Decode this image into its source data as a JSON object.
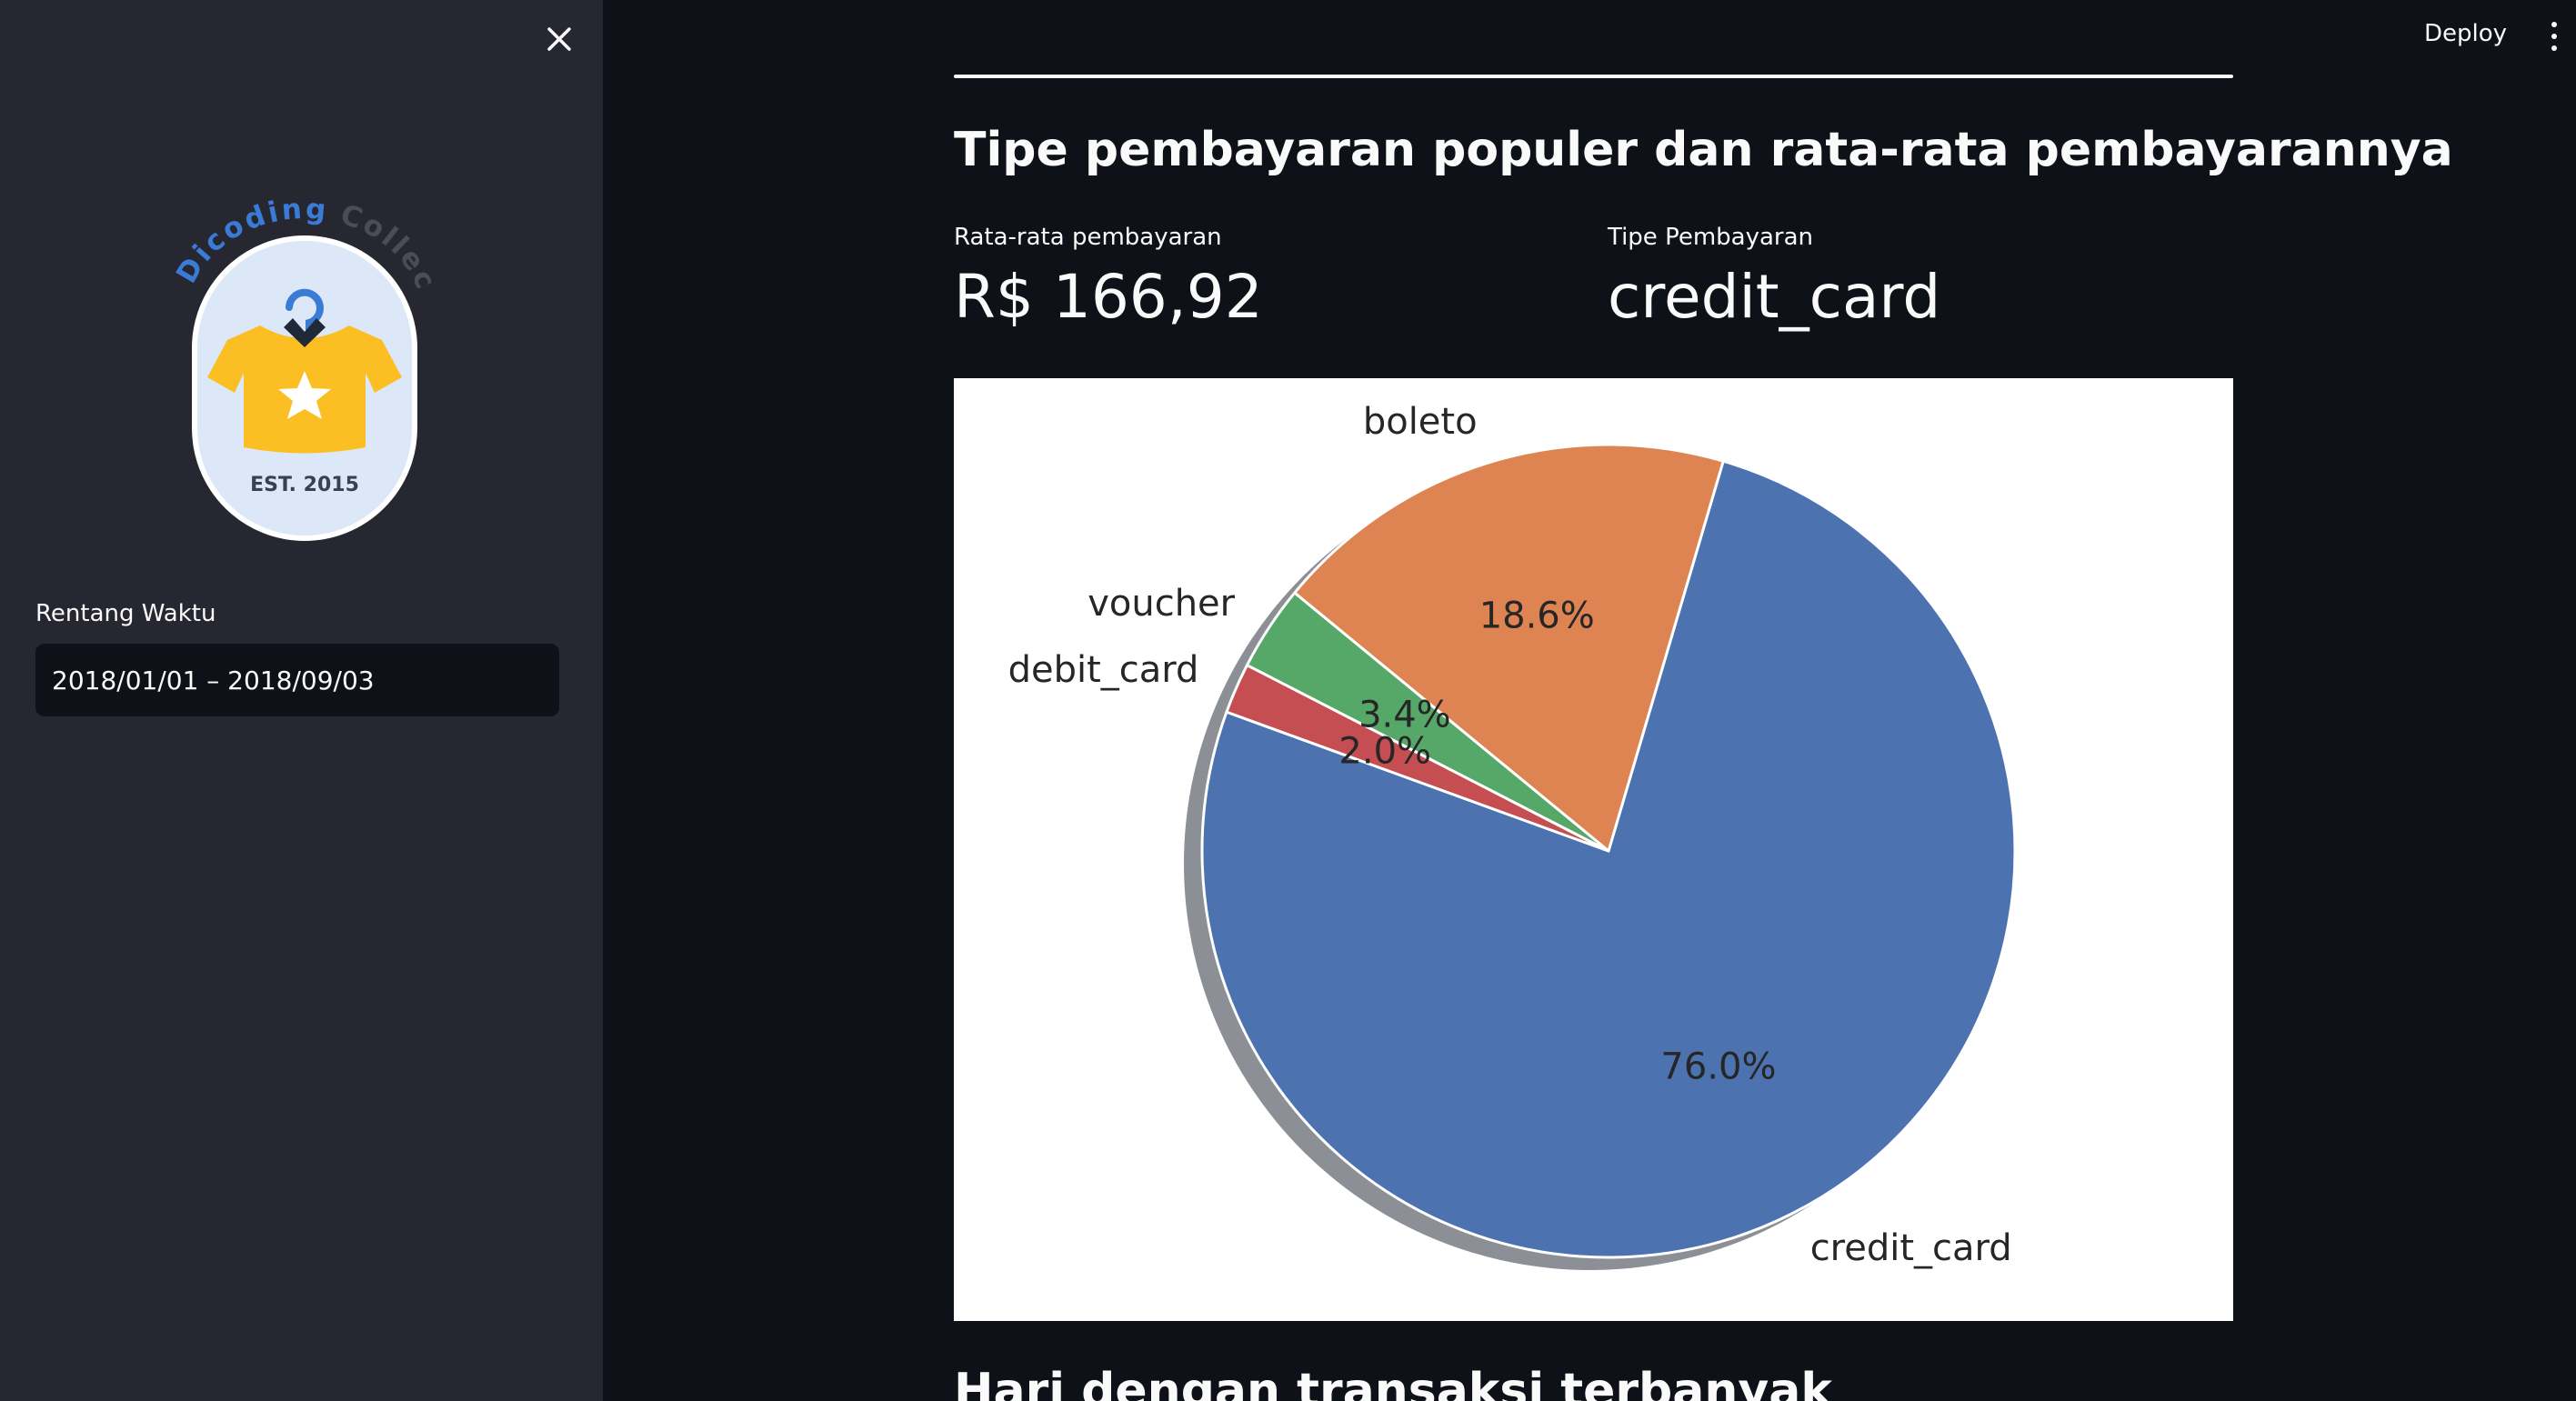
{
  "sidebar": {
    "logo_text_left": "Dicoding",
    "logo_text_right": "Collection",
    "logo_est": "EST. 2015",
    "date_label": "Rentang Waktu",
    "date_value": "2018/01/01 – 2018/09/03"
  },
  "header": {
    "deploy_label": "Deploy"
  },
  "main": {
    "section_title": "Tipe pembayaran populer dan rata-rata pembayarannya",
    "metric_avg_label": "Rata-rata pembayaran",
    "metric_avg_value": "R$ 166,92",
    "metric_type_label": "Tipe Pembayaran",
    "metric_type_value": "credit_card",
    "next_section_title": "Hari dengan transaksi terbanyak"
  },
  "colors": {
    "credit_card": "#4c72b0",
    "boleto": "#dd8452",
    "voucher": "#55a868",
    "debit_card": "#c44e52",
    "shadow": "#8c9096"
  },
  "chart_data": {
    "type": "pie",
    "categories": [
      "credit_card",
      "boleto",
      "voucher",
      "debit_card"
    ],
    "values": [
      76.0,
      18.6,
      3.4,
      2.0
    ],
    "labels": [
      "76.0%",
      "18.6%",
      "3.4%",
      "2.0%"
    ],
    "title": "",
    "shadow": true
  }
}
